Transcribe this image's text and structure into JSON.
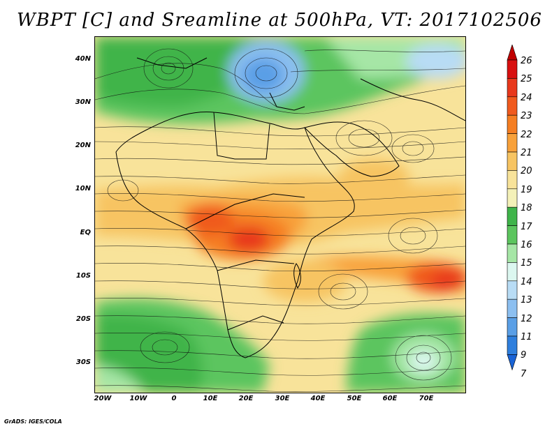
{
  "title": "WBPT [C] and Sreamline at 500hPa, VT: 2017102506",
  "credit": "GrADS: IGES/COLA",
  "lat_labels": [
    "40N",
    "30N",
    "20N",
    "10N",
    "EQ",
    "10S",
    "20S",
    "30S"
  ],
  "lon_labels": [
    "20W",
    "10W",
    "0",
    "10E",
    "20E",
    "30E",
    "40E",
    "50E",
    "60E",
    "70E"
  ],
  "colorbar": {
    "labels": [
      "26",
      "25",
      "24",
      "23",
      "22",
      "21",
      "20",
      "19",
      "18",
      "17",
      "16",
      "15",
      "14",
      "13",
      "12",
      "11",
      "9",
      "7"
    ],
    "colors": [
      "#c00000",
      "#d81010",
      "#e8381c",
      "#f05a1e",
      "#f57e22",
      "#f8a13a",
      "#f7c462",
      "#f8e39a",
      "#f4f1b8",
      "#3fb44a",
      "#5cc55e",
      "#a6e6a6",
      "#dcf7f0",
      "#b8dcf5",
      "#8cbff0",
      "#5a9fe6",
      "#2f7fdd",
      "#1a64d6"
    ]
  }
}
